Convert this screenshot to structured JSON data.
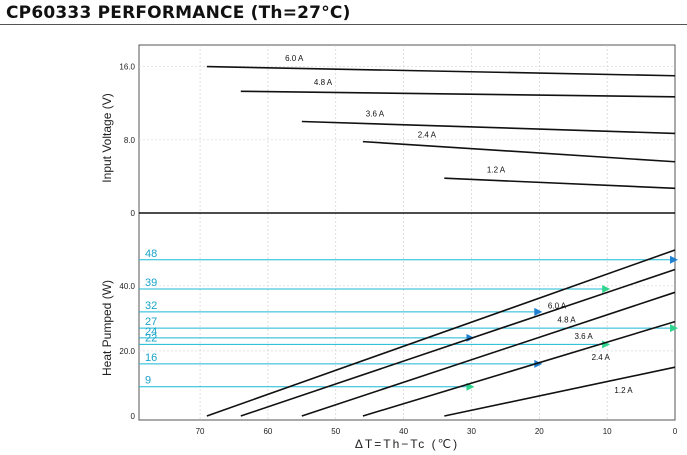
{
  "title": "CP60333 PERFORMANCE (Th=27°C)",
  "colors": {
    "curve": "#111111",
    "highlight": "#19b8d6",
    "arrow": "#1f7fd0",
    "arrow_alt": "#2fd58c"
  },
  "chart_data": [
    {
      "type": "line",
      "panel": "top",
      "ylabel": "Input Voltage (V)",
      "y_ticks": [
        "16.0",
        "8.0",
        "0"
      ],
      "ylim": [
        0,
        20
      ],
      "x_reversed": true,
      "series": [
        {
          "name": "6.0 A",
          "x": [
            69,
            0
          ],
          "y": [
            16.0,
            15.0
          ]
        },
        {
          "name": "4.8 A",
          "x": [
            64,
            0
          ],
          "y": [
            13.3,
            12.7
          ]
        },
        {
          "name": "3.6 A",
          "x": [
            55,
            0
          ],
          "y": [
            10.0,
            8.7
          ]
        },
        {
          "name": "2.4 A",
          "x": [
            46,
            0
          ],
          "y": [
            7.8,
            5.6
          ]
        },
        {
          "name": "1.2 A",
          "x": [
            34,
            0
          ],
          "y": [
            3.8,
            2.7
          ]
        },
        {
          "name": "",
          "x": [
            79,
            0
          ],
          "y": [
            0,
            0
          ]
        }
      ]
    },
    {
      "type": "line",
      "panel": "bottom",
      "ylabel": "Heat Pumped (W)",
      "xlabel": "ΔT=Th−Tc (℃)",
      "x_ticks": [
        "70",
        "60",
        "50",
        "40",
        "30",
        "20",
        "10",
        "0"
      ],
      "y_ticks": [
        "40.0",
        "20.0",
        "0"
      ],
      "xlim": [
        79,
        0
      ],
      "ylim": [
        0,
        51
      ],
      "series": [
        {
          "name": "6.0 A",
          "x": [
            69,
            0
          ],
          "y": [
            0,
            51
          ]
        },
        {
          "name": "4.8 A",
          "x": [
            64,
            0
          ],
          "y": [
            0,
            45
          ]
        },
        {
          "name": "3.6 A",
          "x": [
            55,
            0
          ],
          "y": [
            0,
            38
          ]
        },
        {
          "name": "2.4 A",
          "x": [
            46,
            0
          ],
          "y": [
            0,
            29
          ]
        },
        {
          "name": "1.2 A",
          "x": [
            34,
            0
          ],
          "y": [
            0,
            15
          ]
        }
      ],
      "highlights": [
        {
          "label": "48",
          "y": 48,
          "x_end": 0
        },
        {
          "label": "39",
          "y": 39,
          "x_end": 10
        },
        {
          "label": "32",
          "y": 32,
          "x_end": 20
        },
        {
          "label": "27",
          "y": 27,
          "x_end": 0
        },
        {
          "label": "24",
          "y": 24,
          "x_end": 30
        },
        {
          "label": "22",
          "y": 22,
          "x_end": 10
        },
        {
          "label": "16",
          "y": 16,
          "x_end": 20
        },
        {
          "label": "9",
          "y": 9,
          "x_end": 30
        }
      ]
    }
  ]
}
